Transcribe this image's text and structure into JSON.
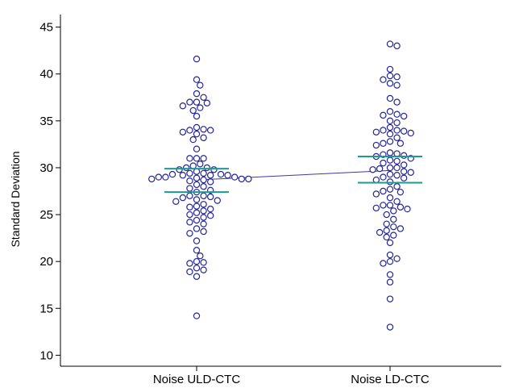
{
  "chart_data": {
    "type": "scatter",
    "ylabel": "Standard Deviation",
    "ylim": [
      9,
      46
    ],
    "yticks": [
      10,
      15,
      20,
      25,
      30,
      35,
      40,
      45
    ],
    "categories": [
      "Noise ULD-CTC",
      "Noise LD-CTC"
    ],
    "grid": false,
    "colors": {
      "points": "#24249a",
      "ci_lines": "#1f9a8f",
      "mean_connector": "#3a3aa0"
    },
    "series": [
      {
        "category": "Noise ULD-CTC",
        "ci": [
          27.4,
          29.9
        ],
        "mean": 28.7,
        "values": [
          41.6,
          39.4,
          38.8,
          37.9,
          37.5,
          37.0,
          37.0,
          36.9,
          36.6,
          36.4,
          36.1,
          35.5,
          34.3,
          34.1,
          34.0,
          34.0,
          33.8,
          33.6,
          33.2,
          33.0,
          32.0,
          31.0,
          31.0,
          31.0,
          30.4,
          30.2,
          30.0,
          30.0,
          29.8,
          29.8,
          29.6,
          29.4,
          29.4,
          29.3,
          29.3,
          29.2,
          29.2,
          29.2,
          29.0,
          29.0,
          29.0,
          28.9,
          28.8,
          28.8,
          28.8,
          28.7,
          28.6,
          28.5,
          28.2,
          28.0,
          27.8,
          27.6,
          27.4,
          27.0,
          27.0,
          26.9,
          26.8,
          26.6,
          26.5,
          26.4,
          26.1,
          25.9,
          25.8,
          25.6,
          25.4,
          25.2,
          25.0,
          24.9,
          24.7,
          24.4,
          24.2,
          24.0,
          23.5,
          23.2,
          23.0,
          22.2,
          21.2,
          20.6,
          20.0,
          19.9,
          19.8,
          19.3,
          19.1,
          18.9,
          18.4,
          14.2
        ]
      },
      {
        "category": "Noise LD-CTC",
        "ci": [
          28.4,
          31.2
        ],
        "mean": 29.7,
        "values": [
          43.2,
          43.0,
          40.5,
          39.8,
          39.7,
          39.4,
          39.0,
          38.8,
          37.4,
          37.0,
          36.0,
          35.7,
          35.6,
          35.5,
          35.0,
          34.8,
          34.3,
          34.0,
          34.0,
          33.9,
          33.8,
          33.7,
          33.6,
          33.2,
          32.8,
          32.6,
          32.6,
          32.4,
          31.6,
          31.5,
          31.4,
          31.3,
          31.2,
          31.0,
          30.8,
          30.7,
          30.5,
          30.3,
          30.0,
          30.0,
          29.9,
          29.8,
          29.6,
          29.5,
          29.3,
          29.2,
          29.0,
          28.9,
          28.7,
          28.5,
          28.0,
          27.7,
          27.5,
          27.4,
          27.2,
          26.8,
          26.4,
          26.0,
          26.0,
          25.8,
          25.7,
          25.6,
          25.4,
          25.0,
          24.5,
          24.0,
          23.7,
          23.5,
          23.3,
          23.1,
          22.8,
          22.6,
          22.0,
          20.7,
          20.3,
          20.0,
          19.8,
          18.6,
          17.8,
          16.0,
          13.0
        ]
      }
    ]
  }
}
